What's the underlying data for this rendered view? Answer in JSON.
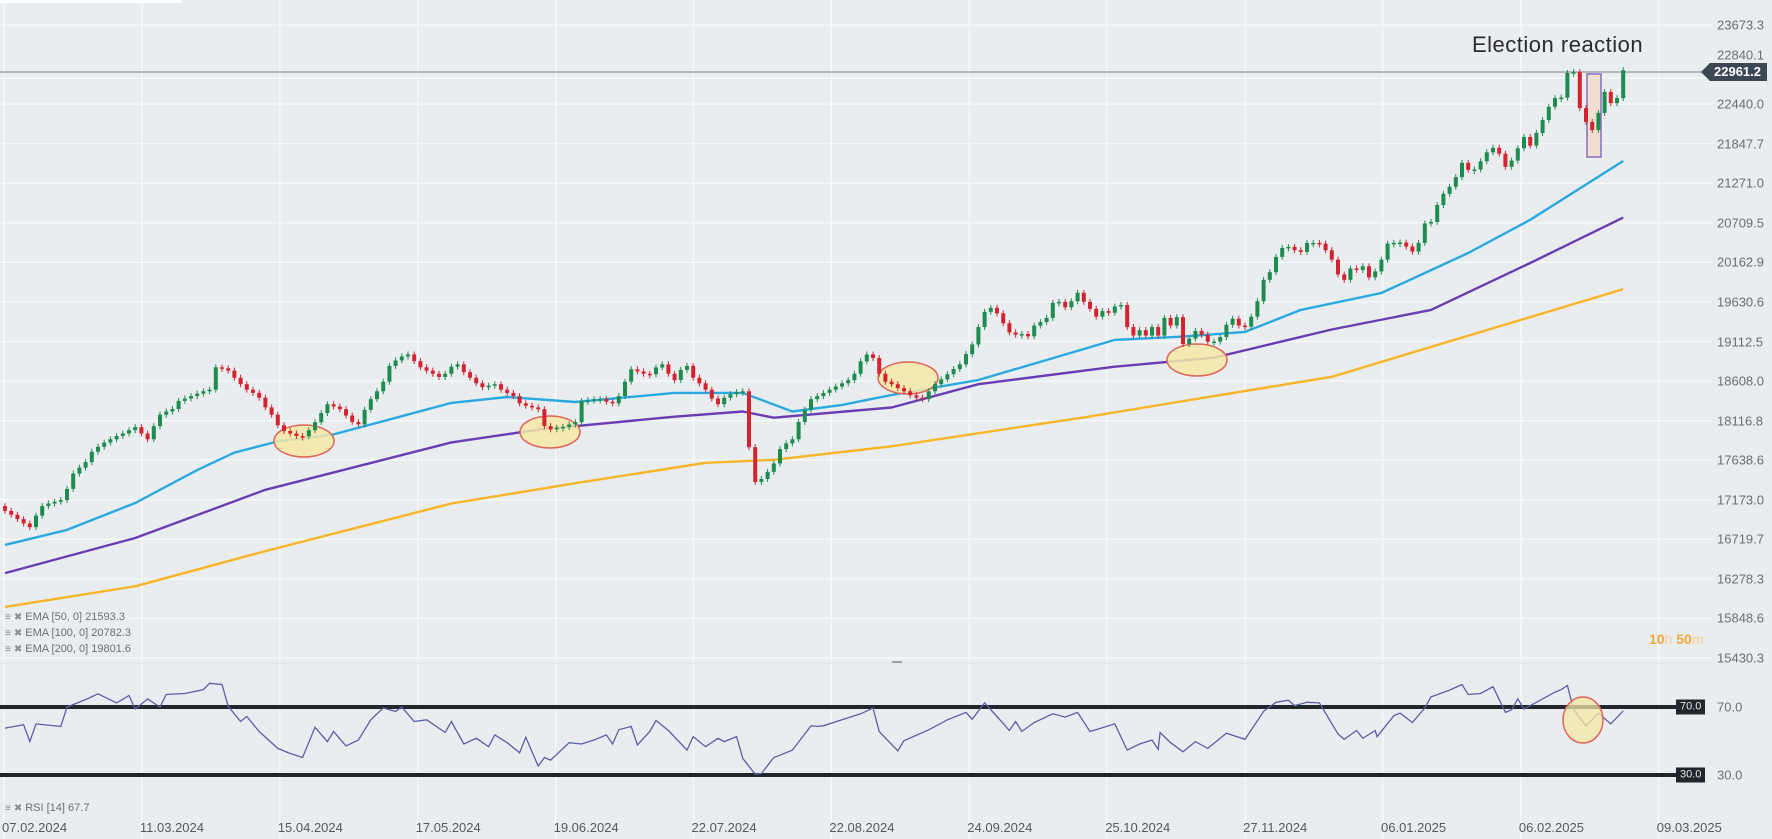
{
  "chart_data": {
    "type": "candlestick",
    "title": "Election reaction",
    "y_scale": "log",
    "ylim": [
      15430.3,
      23673.3
    ],
    "grid": true,
    "y_ticks": [
      "23673.3",
      "22840.1",
      "22440.0",
      "21847.7",
      "21271.0",
      "20709.5",
      "20162.9",
      "19630.6",
      "19112.5",
      "18608.0",
      "18116.8",
      "17638.6",
      "17173.0",
      "16719.7",
      "16278.3",
      "15848.6",
      "15430.3"
    ],
    "x_ticks": [
      "07.02.2024",
      "11.03.2024",
      "15.04.2024",
      "17.05.2024",
      "19.06.2024",
      "22.07.2024",
      "22.08.2024",
      "24.09.2024",
      "25.10.2024",
      "27.11.2024",
      "06.01.2025",
      "06.02.2025",
      "09.03.2025"
    ],
    "last_price": "22961.2",
    "first_open": 17100,
    "closes": [
      17045,
      17000,
      16950,
      16900,
      16858,
      16990,
      17100,
      17130,
      17150,
      17170,
      17300,
      17480,
      17550,
      17616,
      17740,
      17800,
      17850,
      17890,
      17930,
      17960,
      18000,
      18037,
      17960,
      17890,
      18050,
      18190,
      18230,
      18260,
      18360,
      18390,
      18420,
      18450,
      18480,
      18500,
      18782,
      18770,
      18740,
      18650,
      18569,
      18500,
      18460,
      18400,
      18280,
      18190,
      18060,
      17990,
      17960,
      17930,
      17926,
      18000,
      18098,
      18210,
      18319,
      18290,
      18257,
      18180,
      18100,
      18072,
      18250,
      18382,
      18480,
      18600,
      18800,
      18870,
      18920,
      18946,
      18860,
      18782,
      18740,
      18700,
      18660,
      18700,
      18790,
      18820,
      18720,
      18650,
      18580,
      18532,
      18550,
      18569,
      18500,
      18460,
      18420,
      18330,
      18300,
      18280,
      18257,
      18050,
      18011,
      18030,
      18040,
      18070,
      18098,
      18357,
      18370,
      18380,
      18382,
      18350,
      18330,
      18420,
      18600,
      18756,
      18730,
      18700,
      18694,
      18780,
      18820,
      18700,
      18620,
      18750,
      18800,
      18650,
      18580,
      18500,
      18390,
      18319,
      18400,
      18444,
      18470,
      18480,
      17795,
      17381,
      17416,
      17500,
      17600,
      17772,
      17840,
      17890,
      18100,
      18250,
      18382,
      18420,
      18460,
      18500,
      18540,
      18580,
      18620,
      18700,
      18858,
      18946,
      18900,
      18700,
      18600,
      18569,
      18520,
      18480,
      18430,
      18400,
      18382,
      18480,
      18569,
      18630,
      18694,
      18760,
      18820,
      18950,
      19074,
      19300,
      19500,
      19552,
      19480,
      19350,
      19230,
      19200,
      19210,
      19180,
      19320,
      19365,
      19420,
      19619,
      19632,
      19560,
      19640,
      19753,
      19632,
      19540,
      19436,
      19510,
      19487,
      19570,
      19590,
      19300,
      19190,
      19260,
      19190,
      19300,
      19190,
      19420,
      19320,
      19430,
      19080,
      19150,
      19250,
      19200,
      19110,
      19112,
      19170,
      19330,
      19410,
      19320,
      19306,
      19436,
      19640,
      19926,
      20030,
      20238,
      20361,
      20375,
      20330,
      20306,
      20430,
      20430,
      20420,
      20330,
      20200,
      20000,
      19926,
      20080,
      20060,
      20110,
      19960,
      20040,
      20200,
      20420,
      20430,
      20435,
      20380,
      20310,
      20430,
      20700,
      20722,
      20960,
      21120,
      21220,
      21360,
      21567,
      21465,
      21470,
      21590,
      21720,
      21787,
      21700,
      21509,
      21600,
      21780,
      21948,
      21820,
      22007,
      22200,
      22400,
      22532,
      22540,
      22918,
      22930,
      22380,
      22171,
      22050,
      22307,
      22625,
      22456,
      22532,
      22961
    ],
    "ema_series": [
      {
        "name": "EMA [50, 0]",
        "last": "21593.3",
        "color": "#2aa9e0",
        "points": [
          [
            0,
            16657
          ],
          [
            10,
            16827
          ],
          [
            21,
            17135
          ],
          [
            31,
            17521
          ],
          [
            37,
            17729
          ],
          [
            44,
            17864
          ],
          [
            53,
            17949
          ],
          [
            72,
            18335
          ],
          [
            81,
            18409
          ],
          [
            92,
            18347
          ],
          [
            108,
            18460
          ],
          [
            119,
            18460
          ],
          [
            127,
            18229
          ],
          [
            135,
            18311
          ],
          [
            143,
            18434
          ],
          [
            157,
            18621
          ],
          [
            168,
            18875
          ],
          [
            179,
            19133
          ],
          [
            190,
            19176
          ],
          [
            200,
            19237
          ],
          [
            209,
            19526
          ],
          [
            222,
            19750
          ],
          [
            236,
            20291
          ],
          [
            246,
            20752
          ],
          [
            261,
            21593.3
          ]
        ]
      },
      {
        "name": "EMA [100, 0]",
        "last": "20782.3",
        "color": "#6a3db3",
        "points": [
          [
            0,
            16342
          ],
          [
            21,
            16735
          ],
          [
            42,
            17289
          ],
          [
            72,
            17852
          ],
          [
            86,
            18006
          ],
          [
            108,
            18165
          ],
          [
            119,
            18229
          ],
          [
            124,
            18153
          ],
          [
            143,
            18278
          ],
          [
            157,
            18569
          ],
          [
            179,
            18790
          ],
          [
            195,
            18905
          ],
          [
            214,
            19268
          ],
          [
            230,
            19526
          ],
          [
            246,
            20155
          ],
          [
            261,
            20782.3
          ]
        ]
      },
      {
        "name": "EMA [200, 0]",
        "last": "19801.6",
        "color": "#f7b527",
        "points": [
          [
            0,
            15973
          ],
          [
            21,
            16197
          ],
          [
            42,
            16587
          ],
          [
            72,
            17130
          ],
          [
            92,
            17366
          ],
          [
            113,
            17608
          ],
          [
            124,
            17644
          ],
          [
            143,
            17805
          ],
          [
            174,
            18157
          ],
          [
            214,
            18662
          ],
          [
            261,
            19801.6
          ]
        ]
      }
    ],
    "rsi": {
      "name": "RSI [14]",
      "last": "67.7",
      "levels": [
        "70.0",
        "30.0"
      ],
      "color": "#5b5fa6",
      "points": [
        [
          0,
          57.5
        ],
        [
          3,
          59.5
        ],
        [
          4,
          49.5
        ],
        [
          5,
          60
        ],
        [
          9,
          58.5
        ],
        [
          10,
          70
        ],
        [
          13,
          74.4
        ],
        [
          15,
          77.8
        ],
        [
          18,
          72.4
        ],
        [
          20,
          76.8
        ],
        [
          21,
          68.8
        ],
        [
          23,
          74.8
        ],
        [
          25,
          70
        ],
        [
          26,
          77.4
        ],
        [
          29,
          78
        ],
        [
          32,
          80.3
        ],
        [
          33,
          84
        ],
        [
          35,
          83.3
        ],
        [
          36,
          70.4
        ],
        [
          38,
          61.4
        ],
        [
          39,
          64.4
        ],
        [
          41,
          55.5
        ],
        [
          44,
          45.5
        ],
        [
          46,
          42.5
        ],
        [
          48,
          40.1
        ],
        [
          50,
          58
        ],
        [
          52,
          49.5
        ],
        [
          53,
          55.5
        ],
        [
          55,
          47
        ],
        [
          57,
          50.5
        ],
        [
          59,
          62.4
        ],
        [
          61,
          69.4
        ],
        [
          63,
          67.4
        ],
        [
          64,
          70
        ],
        [
          66,
          61.4
        ],
        [
          68,
          62.4
        ],
        [
          71,
          54.9
        ],
        [
          72,
          61.4
        ],
        [
          74,
          48.1
        ],
        [
          76,
          51.5
        ],
        [
          78,
          46.5
        ],
        [
          79,
          53.5
        ],
        [
          81,
          48.9
        ],
        [
          83,
          42.9
        ],
        [
          84,
          52.1
        ],
        [
          86,
          35
        ],
        [
          87,
          40.1
        ],
        [
          88,
          38.6
        ],
        [
          91,
          48.9
        ],
        [
          93,
          48.1
        ],
        [
          95,
          50.5
        ],
        [
          97,
          53.5
        ],
        [
          98,
          48.1
        ],
        [
          99,
          56.5
        ],
        [
          101,
          58.5
        ],
        [
          102,
          47.5
        ],
        [
          104,
          55.5
        ],
        [
          105,
          62
        ],
        [
          107,
          56.1
        ],
        [
          110,
          44.5
        ],
        [
          111,
          52.5
        ],
        [
          113,
          46.5
        ],
        [
          115,
          51.5
        ],
        [
          116,
          49.5
        ],
        [
          118,
          52.5
        ],
        [
          119,
          39.6
        ],
        [
          121,
          30.2
        ],
        [
          122,
          30.6
        ],
        [
          124,
          40.1
        ],
        [
          125,
          41.5
        ],
        [
          127,
          44.5
        ],
        [
          129,
          54.1
        ],
        [
          130,
          58.9
        ],
        [
          131,
          58.5
        ],
        [
          132,
          58.9
        ],
        [
          135,
          62.4
        ],
        [
          138,
          66
        ],
        [
          140,
          69.4
        ],
        [
          141,
          55.5
        ],
        [
          144,
          44.1
        ],
        [
          145,
          50.1
        ],
        [
          149,
          56.5
        ],
        [
          152,
          62.4
        ],
        [
          155,
          66.8
        ],
        [
          156,
          62.8
        ],
        [
          158,
          72.4
        ],
        [
          160,
          64.4
        ],
        [
          162,
          56.1
        ],
        [
          163,
          61.4
        ],
        [
          164,
          55.5
        ],
        [
          166,
          60.8
        ],
        [
          169,
          66
        ],
        [
          171,
          64
        ],
        [
          173,
          66.8
        ],
        [
          175,
          55.5
        ],
        [
          179,
          60
        ],
        [
          181,
          44.5
        ],
        [
          183,
          48.1
        ],
        [
          185,
          50.5
        ],
        [
          186,
          44.9
        ],
        [
          186.3,
          54.9
        ],
        [
          188,
          48.9
        ],
        [
          190,
          43.5
        ],
        [
          192,
          49.5
        ],
        [
          194,
          45.5
        ],
        [
          197,
          54.5
        ],
        [
          200,
          50.9
        ],
        [
          203,
          67.4
        ],
        [
          205,
          72.8
        ],
        [
          207,
          74
        ],
        [
          208,
          70.8
        ],
        [
          210,
          72.8
        ],
        [
          212,
          72.4
        ],
        [
          215,
          54.1
        ],
        [
          216,
          50.9
        ],
        [
          218,
          56.1
        ],
        [
          219,
          51.5
        ],
        [
          221,
          56.1
        ],
        [
          221.3,
          52.5
        ],
        [
          224,
          64.8
        ],
        [
          225,
          66.4
        ],
        [
          227,
          60.8
        ],
        [
          229,
          69.4
        ],
        [
          230,
          76
        ],
        [
          233,
          80
        ],
        [
          235,
          83.3
        ],
        [
          236,
          77.4
        ],
        [
          238,
          78
        ],
        [
          240,
          82
        ],
        [
          242,
          66.8
        ],
        [
          243,
          68.4
        ],
        [
          244,
          74.8
        ],
        [
          245,
          68.8
        ],
        [
          247,
          72.8
        ],
        [
          250,
          78.8
        ],
        [
          251,
          80.3
        ],
        [
          252,
          82.7
        ],
        [
          253,
          68.4
        ],
        [
          255,
          58.9
        ],
        [
          257,
          66.4
        ],
        [
          259,
          60
        ],
        [
          261,
          67.7
        ]
      ]
    },
    "candle_colors": {
      "up": "#1f8c4f",
      "down": "#d4232f"
    },
    "annotations": [
      "support-touch-ema50",
      "support-touch-ema100",
      "support-touch-ema100",
      "support-touch-ema100",
      "rsi-dip",
      "election-reaction-box"
    ]
  },
  "countdown": {
    "hours": "10",
    "h_unit": "h",
    "minutes": "50",
    "m_unit": "m"
  },
  "legend_icons": {
    "menu": "≡",
    "remove": "✖"
  }
}
